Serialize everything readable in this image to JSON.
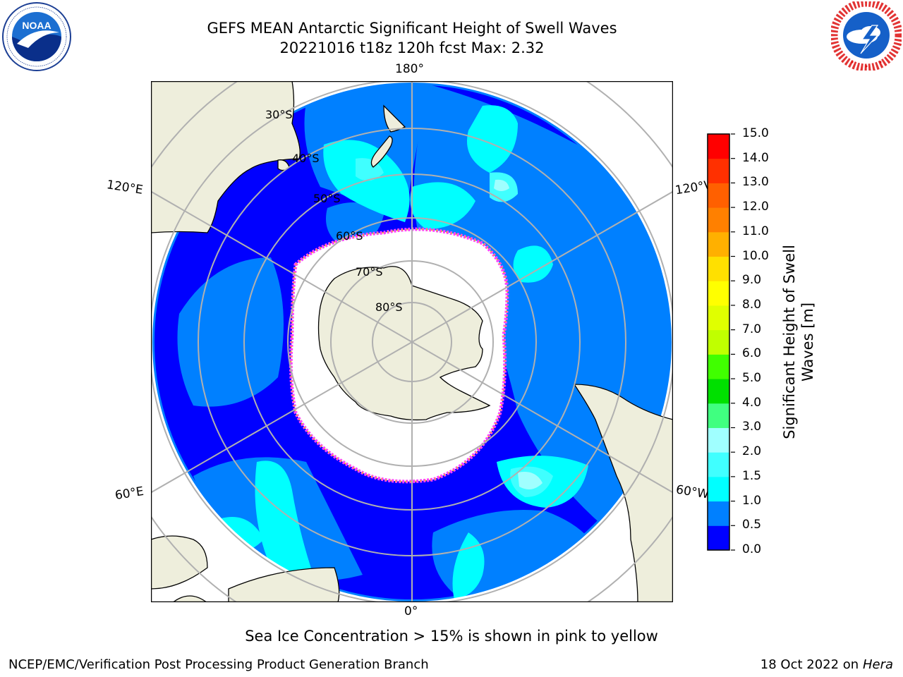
{
  "header": {
    "title_line1": "GEFS MEAN Antarctic Significant Height of Swell Waves",
    "title_line2": "20221016 t18z 120h fcst   Max: 2.32"
  },
  "logos": {
    "left": {
      "name": "NOAA",
      "ring_text": "NATIONAL OCEANIC AND ATMOSPHERIC ADMINISTRATION · U.S. DEPARTMENT OF COMMERCE"
    },
    "right": {
      "name": "NATIONAL WEATHER SERVICE"
    }
  },
  "map": {
    "projection": "south-polar-stereographic",
    "longitude_labels": {
      "top": "180°",
      "upper_left": "120°E",
      "upper_right": "120°W",
      "lower_left": "60°E",
      "lower_right": "60°W",
      "bottom": "0°"
    },
    "latitude_labels": [
      "30°S",
      "40°S",
      "50°S",
      "60°S",
      "70°S",
      "80°S"
    ],
    "colors": {
      "land": "#eeeedc",
      "sea_ice": "#ffffff",
      "ice_edge": "#ff40ff",
      "ice_edge_inner": "#ffb020",
      "grid": "#b0b0b0",
      "coast": "#000000"
    }
  },
  "colorbar": {
    "label": "Significant Height of Swell Waves [m]",
    "label_line1": "Significant Height of Swell",
    "label_line2": "Waves [m]",
    "ticks": [
      "0.0",
      "0.5",
      "1.0",
      "1.5",
      "2.0",
      "3.0",
      "4.0",
      "5.0",
      "6.0",
      "7.0",
      "8.0",
      "9.0",
      "10.0",
      "11.0",
      "12.0",
      "13.0",
      "14.0",
      "15.0"
    ],
    "colors": [
      "#0000ff",
      "#0080ff",
      "#00ffff",
      "#40ffff",
      "#a0ffff",
      "#40ff80",
      "#00e000",
      "#40ff00",
      "#c0ff00",
      "#e0ff00",
      "#ffff00",
      "#ffe000",
      "#ffb000",
      "#ff8000",
      "#ff6000",
      "#ff3000",
      "#ff0000"
    ]
  },
  "chart_data": {
    "type": "heatmap",
    "title": "GEFS MEAN Antarctic Significant Height of Swell Waves",
    "subtitle": "20221016 t18z 120h fcst   Max: 2.32",
    "variable": "Significant Height of Swell Waves [m]",
    "max_value": 2.32,
    "color_scale_range": [
      0.0,
      15.0
    ],
    "color_scale_ticks": [
      0.0,
      0.5,
      1.0,
      1.5,
      2.0,
      3.0,
      4.0,
      5.0,
      6.0,
      7.0,
      8.0,
      9.0,
      10.0,
      11.0,
      12.0,
      13.0,
      14.0,
      15.0
    ],
    "grid": true,
    "legend": "right colorbar"
  },
  "footer": {
    "note": "Sea Ice Concentration > 15% is shown in pink to yellow",
    "credit": "NCEP/EMC/Verification Post Processing Product Generation Branch",
    "date": "18 Oct 2022 on ",
    "host": "Hera"
  }
}
